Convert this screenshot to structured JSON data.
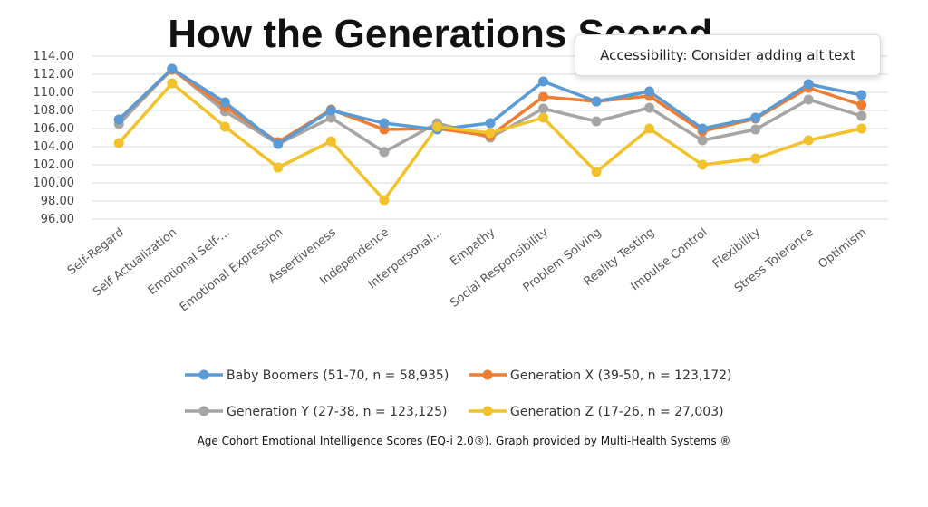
{
  "chart_data": {
    "type": "line",
    "title": "How the Generations Scored",
    "caption": "Age Cohort Emotional Intelligence Scores (EQ-i 2.0®). Graph provided by Multi-Health Systems ®",
    "ylim": [
      96,
      114
    ],
    "yticks": [
      "114.00",
      "112.00",
      "110.00",
      "108.00",
      "106.00",
      "104.00",
      "102.00",
      "100.00",
      "98.00",
      "96.00"
    ],
    "categories": [
      "Self-Regard",
      "Self Actualization",
      "Emotional Self-...",
      "Emotional Expression",
      "Assertiveness",
      "Independence",
      "Interpersonal...",
      "Empathy",
      "Social Responsibility",
      "Problem Solving",
      "Reality Testing",
      "Impulse Control",
      "Flexibility",
      "Stress Tolerance",
      "Optimism"
    ],
    "grid": true,
    "legend_position": "bottom",
    "series": [
      {
        "name": "Baby Boomers (51-70, n = 58,935)",
        "color": "#5b9bd5",
        "values": [
          107.0,
          112.6,
          108.9,
          104.3,
          108.0,
          106.6,
          105.9,
          106.6,
          111.2,
          109.0,
          110.1,
          106.0,
          107.2,
          110.9,
          109.7
        ]
      },
      {
        "name": "Generation X (39-50, n = 123,172)",
        "color": "#ed7d31",
        "values": [
          107.0,
          112.5,
          108.4,
          104.5,
          108.1,
          105.9,
          106.0,
          105.2,
          109.5,
          109.0,
          109.6,
          105.7,
          107.1,
          110.5,
          108.6
        ]
      },
      {
        "name": "Generation Y (27-38, n = 123,125)",
        "color": "#a5a5a5",
        "values": [
          106.5,
          112.6,
          107.9,
          104.3,
          107.2,
          103.4,
          106.6,
          105.0,
          108.2,
          106.8,
          108.3,
          104.7,
          105.9,
          109.2,
          107.4
        ]
      },
      {
        "name": "Generation Z (17-26, n = 27,003)",
        "color": "#f2c22c",
        "values": [
          104.4,
          111.0,
          106.2,
          101.7,
          104.6,
          98.1,
          106.2,
          105.5,
          107.2,
          101.2,
          106.0,
          102.0,
          102.7,
          104.7,
          106.0
        ]
      }
    ]
  },
  "tooltip": {
    "text": "Accessibility: Consider adding alt text"
  }
}
